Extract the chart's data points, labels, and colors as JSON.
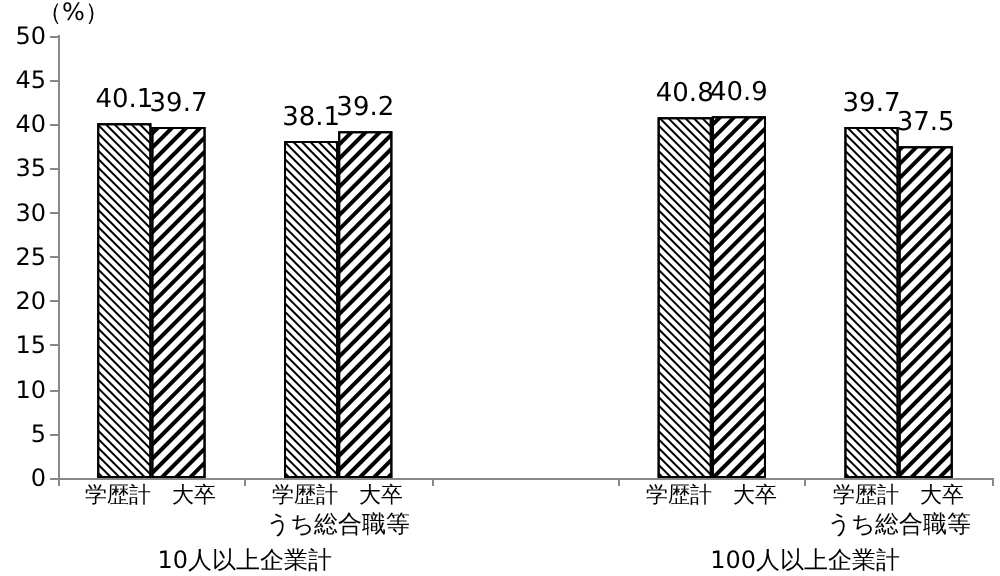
{
  "chart_data": {
    "type": "bar",
    "ylabel": "（%）",
    "categories": [
      null,
      null,
      null,
      null,
      null
    ],
    "series": [
      {
        "name": "学歴計",
        "color": "#ffffff",
        "values": [
          40.1,
          38.1,
          null,
          40.8,
          39.7
        ]
      },
      {
        "name": "大卒",
        "color": "#ffffff",
        "values": [
          39.7,
          39.2,
          null,
          40.9,
          37.5
        ]
      }
    ],
    "ylim": [
      0,
      50
    ],
    "yticks": [
      0,
      5,
      10,
      15,
      20,
      25,
      30,
      35,
      40,
      45,
      50
    ],
    "grid": false,
    "legend": false,
    "data_labels": true,
    "annotations": [
      "うち総合職等",
      "うち総合職等",
      "10人以上企業計",
      "100人以上企業計"
    ]
  }
}
